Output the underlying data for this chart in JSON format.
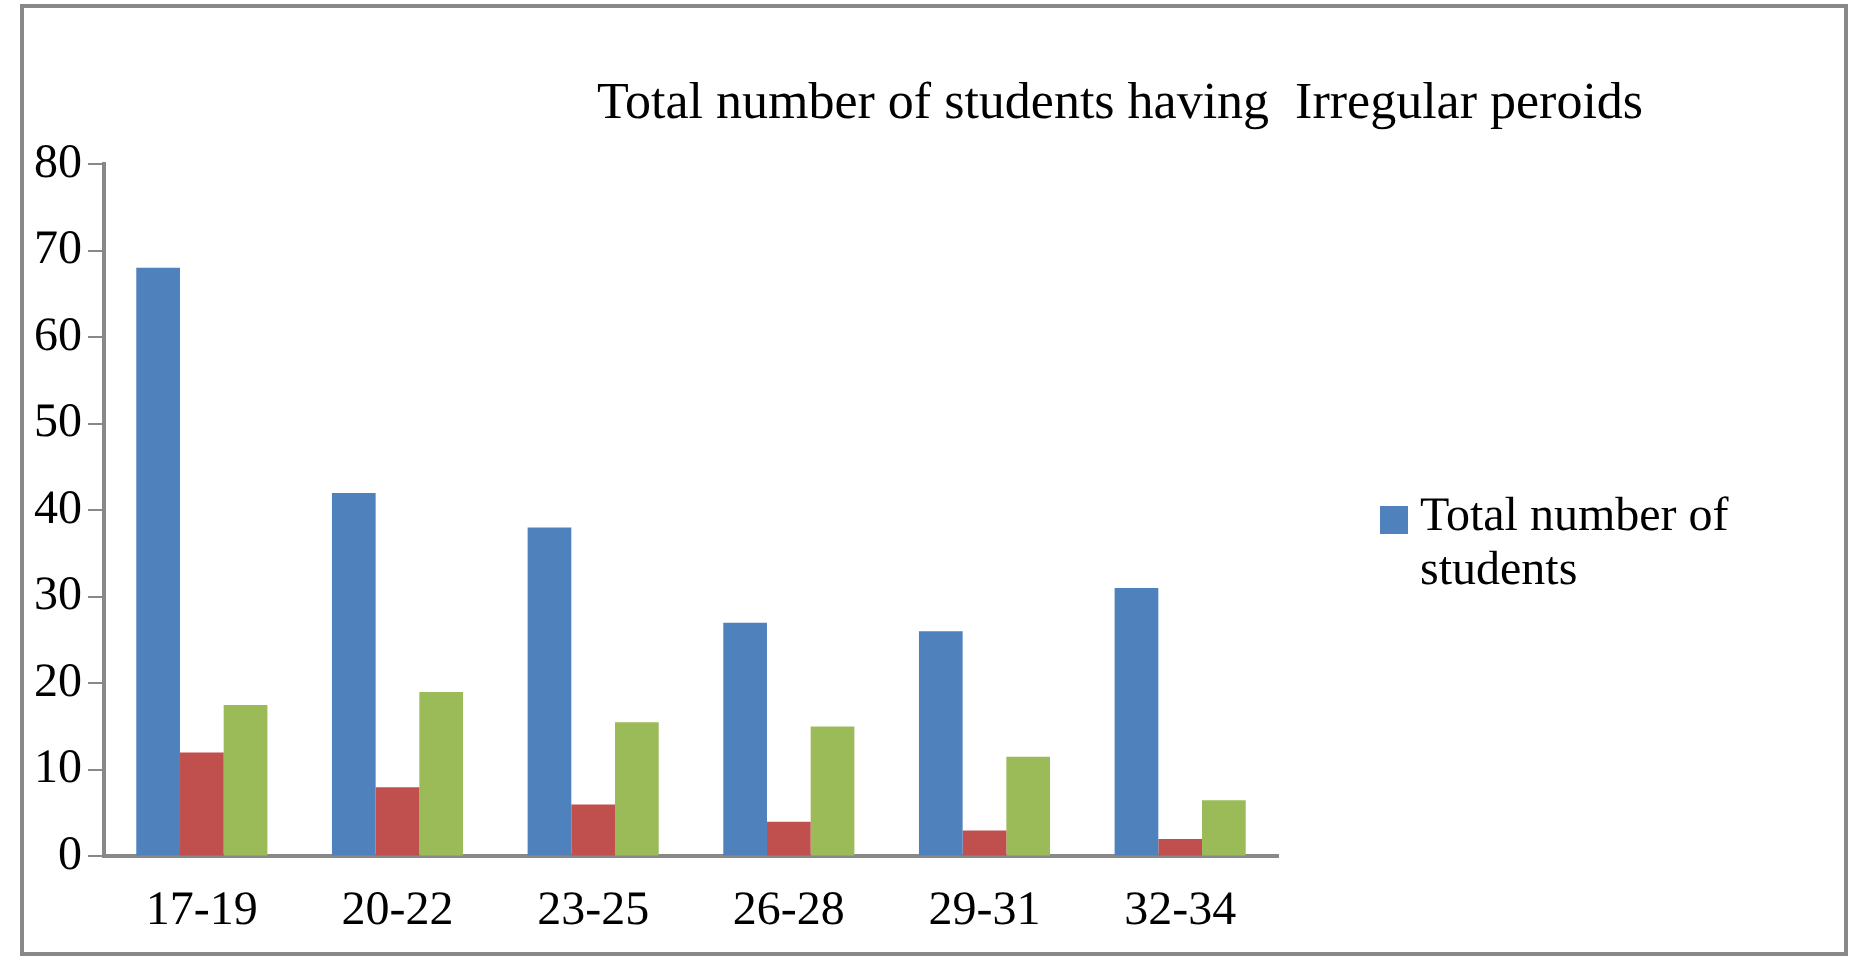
{
  "chart_data": {
    "type": "bar",
    "title": "Total number of students having  Irregular peroids",
    "categories": [
      "17-19",
      "20-22",
      "23-25",
      "26-28",
      "29-31",
      "32-34"
    ],
    "series": [
      {
        "name": "Total number of students",
        "color": "#4f81bd",
        "values": [
          68,
          42,
          38,
          27,
          26,
          31
        ]
      },
      {
        "color": "#c0504d",
        "values": [
          12,
          8,
          6,
          4,
          3,
          2
        ]
      },
      {
        "color": "#9bbb59",
        "values": [
          17.5,
          19,
          15.5,
          15,
          11.5,
          6.5
        ]
      }
    ],
    "ylim": [
      0,
      80
    ],
    "yticks": [
      0,
      10,
      20,
      30,
      40,
      50,
      60,
      70,
      80
    ],
    "grid": false,
    "legend": "right"
  }
}
